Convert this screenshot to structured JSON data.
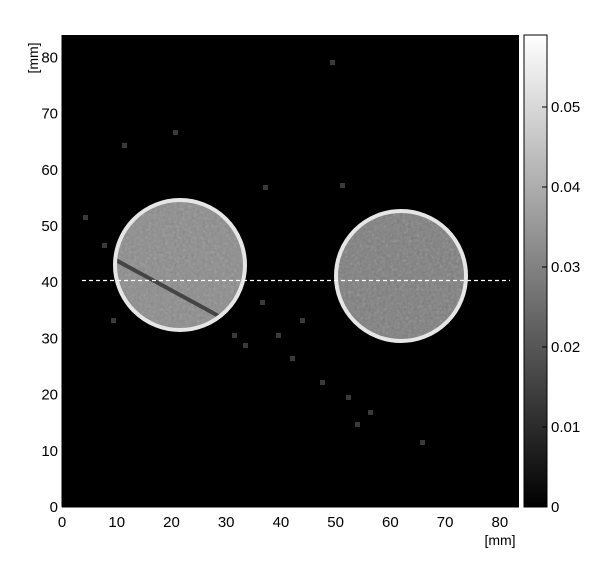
{
  "image": {
    "description_free": true,
    "x_axis": {
      "unit": "[mm]",
      "ticks": [
        "0",
        "10",
        "20",
        "30",
        "40",
        "50",
        "60",
        "70",
        "80"
      ],
      "range": [
        0,
        83.5
      ]
    },
    "y_axis": {
      "unit": "[mm]",
      "ticks": [
        "0",
        "10",
        "20",
        "30",
        "40",
        "50",
        "60",
        "70",
        "80"
      ],
      "range": [
        0,
        84
      ]
    },
    "colorbar": {
      "ticks": [
        "0",
        "0.01",
        "0.02",
        "0.03",
        "0.04",
        "0.05"
      ],
      "range": [
        0,
        0.059
      ]
    },
    "profile_line_y_mm": 40.5,
    "colors": {
      "background": "#000000",
      "profile_line": "#ffffff"
    }
  }
}
